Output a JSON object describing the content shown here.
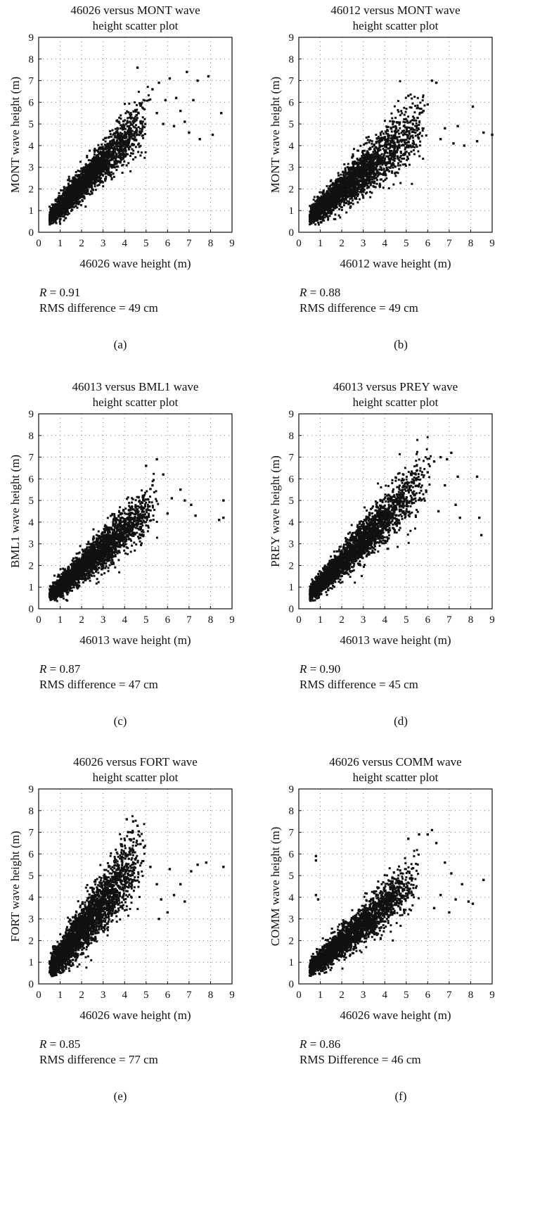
{
  "chart_data": [
    {
      "type": "scatter",
      "title_lines": [
        "46026 versus MONT wave",
        "height scatter plot"
      ],
      "xlabel": "46026 wave height (m)",
      "ylabel": "MONT wave height (m)",
      "xlim": [
        0,
        9
      ],
      "ylim": [
        0,
        9
      ],
      "ticks": [
        "0",
        "1",
        "2",
        "3",
        "4",
        "5",
        "6",
        "7",
        "8",
        "9"
      ],
      "grid": true,
      "stats": {
        "r_label": "R",
        "r_value": "= 0.91",
        "rms": "RMS difference = 49 cm"
      },
      "caption": "(a)",
      "cloud": {
        "slope": 1.05,
        "intercept": 0.1,
        "spread": 0.45,
        "n": 2600,
        "xmax": 5.2
      },
      "outliers": [
        [
          4.6,
          7.6
        ],
        [
          5.3,
          6.6
        ],
        [
          5.6,
          6.9
        ],
        [
          6.1,
          7.1
        ],
        [
          6.4,
          6.2
        ],
        [
          6.9,
          7.4
        ],
        [
          7.4,
          7.0
        ],
        [
          7.9,
          7.2
        ],
        [
          7.2,
          6.1
        ],
        [
          8.5,
          5.5
        ],
        [
          5.8,
          5.0
        ],
        [
          6.3,
          4.9
        ],
        [
          7.0,
          4.6
        ],
        [
          7.5,
          4.3
        ],
        [
          8.1,
          4.5
        ],
        [
          6.6,
          5.6
        ],
        [
          6.8,
          5.1
        ],
        [
          5.5,
          5.5
        ],
        [
          5.9,
          6.1
        ]
      ]
    },
    {
      "type": "scatter",
      "title_lines": [
        "46012 versus MONT wave",
        "height scatter plot"
      ],
      "xlabel": "46012 wave height (m)",
      "ylabel": "MONT wave height (m)",
      "xlim": [
        0,
        9
      ],
      "ylim": [
        0,
        9
      ],
      "ticks": [
        "0",
        "1",
        "2",
        "3",
        "4",
        "5",
        "6",
        "7",
        "8",
        "9"
      ],
      "grid": true,
      "stats": {
        "r_label": "R",
        "r_value": "= 0.88",
        "rms": "RMS difference = 49 cm"
      },
      "caption": "(b)",
      "cloud": {
        "slope": 0.82,
        "intercept": 0.3,
        "spread": 0.5,
        "n": 2600,
        "xmax": 6.0
      },
      "outliers": [
        [
          5.1,
          6.3
        ],
        [
          6.2,
          7.0
        ],
        [
          6.4,
          6.9
        ],
        [
          6.8,
          4.8
        ],
        [
          7.2,
          4.1
        ],
        [
          7.7,
          4.0
        ],
        [
          8.1,
          5.8
        ],
        [
          8.3,
          4.2
        ],
        [
          8.6,
          4.6
        ],
        [
          9.0,
          4.5
        ],
        [
          7.4,
          4.9
        ],
        [
          6.6,
          4.3
        ],
        [
          5.8,
          5.6
        ],
        [
          6.0,
          5.9
        ]
      ]
    },
    {
      "type": "scatter",
      "title_lines": [
        "46013 versus BML1 wave",
        "height scatter plot"
      ],
      "xlabel": "46013 wave height (m)",
      "ylabel": "BML1 wave height (m)",
      "xlim": [
        0,
        9
      ],
      "ylim": [
        0,
        9
      ],
      "ticks": [
        "0",
        "1",
        "2",
        "3",
        "4",
        "5",
        "6",
        "7",
        "8",
        "9"
      ],
      "grid": true,
      "stats": {
        "r_label": "R",
        "r_value": "= 0.87",
        "rms": "RMS difference = 47 cm"
      },
      "caption": "(c)",
      "cloud": {
        "slope": 0.85,
        "intercept": 0.2,
        "spread": 0.42,
        "n": 2800,
        "xmax": 5.6
      },
      "outliers": [
        [
          5.0,
          6.6
        ],
        [
          5.5,
          6.9
        ],
        [
          5.8,
          6.2
        ],
        [
          6.2,
          5.1
        ],
        [
          6.6,
          5.5
        ],
        [
          6.8,
          5.0
        ],
        [
          7.1,
          4.8
        ],
        [
          7.3,
          4.3
        ],
        [
          8.4,
          4.1
        ],
        [
          8.6,
          4.2
        ],
        [
          8.6,
          5.0
        ],
        [
          6.0,
          4.4
        ],
        [
          5.3,
          5.7
        ]
      ]
    },
    {
      "type": "scatter",
      "title_lines": [
        "46013 versus PREY wave",
        "height scatter plot"
      ],
      "xlabel": "46013 wave height (m)",
      "ylabel": "PREY wave height (m)",
      "xlim": [
        0,
        9
      ],
      "ylim": [
        0,
        9
      ],
      "ticks": [
        "0",
        "1",
        "2",
        "3",
        "4",
        "5",
        "6",
        "7",
        "8",
        "9"
      ],
      "grid": true,
      "stats": {
        "r_label": "R",
        "r_value": "= 0.90",
        "rms": "RMS difference = 45 cm"
      },
      "caption": "(d)",
      "cloud": {
        "slope": 1.0,
        "intercept": 0.15,
        "spread": 0.45,
        "n": 2700,
        "xmax": 6.2
      },
      "outliers": [
        [
          6.0,
          6.3
        ],
        [
          6.3,
          6.8
        ],
        [
          6.6,
          7.0
        ],
        [
          6.9,
          6.9
        ],
        [
          7.1,
          7.2
        ],
        [
          7.4,
          6.1
        ],
        [
          7.3,
          4.8
        ],
        [
          7.5,
          4.2
        ],
        [
          8.3,
          6.1
        ],
        [
          8.4,
          4.2
        ],
        [
          8.5,
          3.4
        ],
        [
          6.8,
          5.7
        ],
        [
          6.5,
          4.5
        ]
      ]
    },
    {
      "type": "scatter",
      "title_lines": [
        "46026 versus FORT wave",
        "height scatter plot"
      ],
      "xlabel": "46026 wave height (m)",
      "ylabel": "FORT wave height (m)",
      "xlim": [
        0,
        9
      ],
      "ylim": [
        0,
        9
      ],
      "ticks": [
        "0",
        "1",
        "2",
        "3",
        "4",
        "5",
        "6",
        "7",
        "8",
        "9"
      ],
      "grid": true,
      "stats": {
        "r_label": "R",
        "r_value": "= 0.85",
        "rms": "RMS difference = 77 cm"
      },
      "caption": "(e)",
      "cloud": {
        "slope": 1.25,
        "intercept": 0.0,
        "spread": 0.65,
        "n": 2800,
        "xmax": 5.0
      },
      "outliers": [
        [
          4.1,
          7.6
        ],
        [
          4.4,
          7.5
        ],
        [
          4.6,
          7.3
        ],
        [
          4.9,
          6.3
        ],
        [
          5.2,
          5.4
        ],
        [
          5.5,
          4.6
        ],
        [
          5.7,
          3.9
        ],
        [
          6.1,
          5.3
        ],
        [
          6.3,
          4.1
        ],
        [
          6.6,
          4.6
        ],
        [
          6.8,
          3.8
        ],
        [
          7.1,
          5.2
        ],
        [
          7.4,
          5.5
        ],
        [
          7.8,
          5.6
        ],
        [
          8.6,
          5.4
        ],
        [
          5.6,
          3.0
        ],
        [
          6.0,
          3.3
        ]
      ]
    },
    {
      "type": "scatter",
      "title_lines": [
        "46026 versus COMM wave",
        "height scatter plot"
      ],
      "xlabel": "46026 wave height (m)",
      "ylabel": "COMM wave height (m)",
      "xlim": [
        0,
        9
      ],
      "ylim": [
        0,
        9
      ],
      "ticks": [
        "0",
        "1",
        "2",
        "3",
        "4",
        "5",
        "6",
        "7",
        "8",
        "9"
      ],
      "grid": true,
      "stats": {
        "r_label": "R",
        "r_value": "= 0.86",
        "rms": "RMS Difference = 46 cm"
      },
      "caption": "(f)",
      "cloud": {
        "slope": 0.85,
        "intercept": 0.25,
        "spread": 0.42,
        "n": 2600,
        "xmax": 5.6
      },
      "outliers": [
        [
          0.8,
          5.9
        ],
        [
          0.8,
          5.7
        ],
        [
          0.8,
          4.1
        ],
        [
          0.9,
          3.9
        ],
        [
          5.1,
          6.7
        ],
        [
          5.6,
          6.9
        ],
        [
          6.0,
          6.9
        ],
        [
          6.2,
          7.1
        ],
        [
          6.4,
          6.5
        ],
        [
          6.8,
          5.6
        ],
        [
          7.1,
          5.1
        ],
        [
          7.3,
          3.9
        ],
        [
          7.6,
          4.6
        ],
        [
          7.9,
          3.8
        ],
        [
          8.1,
          3.7
        ],
        [
          8.6,
          4.8
        ],
        [
          7.0,
          3.3
        ],
        [
          6.6,
          4.1
        ],
        [
          6.3,
          3.5
        ]
      ]
    }
  ]
}
